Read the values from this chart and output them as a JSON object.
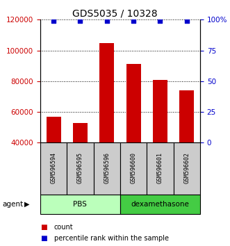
{
  "title": "GDS5035 / 10328",
  "samples": [
    "GSM596594",
    "GSM596595",
    "GSM596596",
    "GSM596600",
    "GSM596601",
    "GSM596602"
  ],
  "counts": [
    57000,
    53000,
    105000,
    91000,
    81000,
    74000
  ],
  "percentiles": [
    99,
    99,
    99,
    99,
    99,
    99
  ],
  "ylim_left": [
    40000,
    120000
  ],
  "ylim_right": [
    0,
    100
  ],
  "bar_color": "#cc0000",
  "dot_color": "#0000cc",
  "groups": [
    {
      "label": "PBS",
      "start": 0,
      "end": 3,
      "color": "#bbffbb"
    },
    {
      "label": "dexamethasone",
      "start": 3,
      "end": 6,
      "color": "#44cc44"
    }
  ],
  "yticks_left": [
    40000,
    60000,
    80000,
    100000,
    120000
  ],
  "yticks_right": [
    0,
    25,
    50,
    75,
    100
  ],
  "ytick_labels_right": [
    "0",
    "25",
    "50",
    "75",
    "100%"
  ],
  "agent_label": "agent",
  "legend_count_label": "count",
  "legend_pct_label": "percentile rank within the sample",
  "sample_box_color": "#cccccc",
  "title_fontsize": 10,
  "tick_fontsize": 7.5,
  "bar_width": 0.55
}
